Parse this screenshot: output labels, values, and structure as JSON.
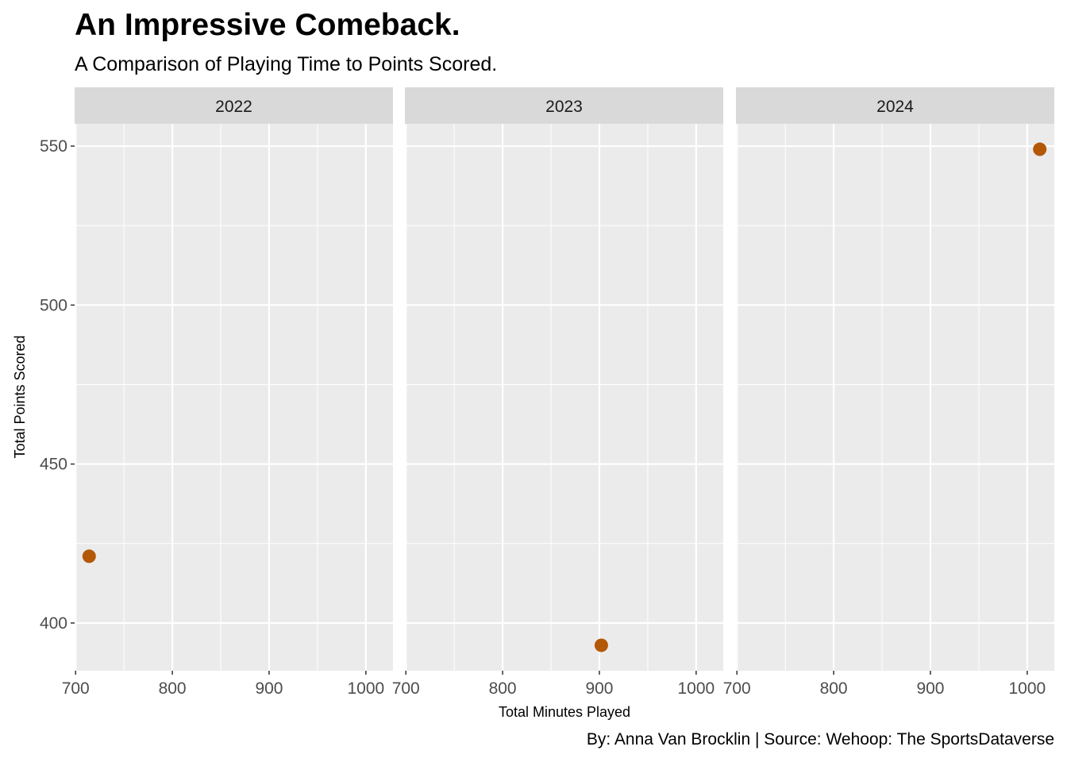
{
  "title": "An Impressive Comeback.",
  "subtitle": "A Comparison of Playing Time to Points Scored.",
  "caption": "By: Anna Van Brocklin | Source: Wehoop: The SportsDataverse",
  "colors": {
    "point": "#B35806",
    "panel_bg": "#EBEBEB",
    "strip_bg": "#D9D9D9",
    "grid": "#FFFFFF",
    "tick": "#333333"
  },
  "chart_data": {
    "type": "scatter",
    "facet_by": "year",
    "xlabel": "Total Minutes Played",
    "ylabel": "Total Points Scored",
    "xlim": [
      699,
      1028
    ],
    "ylim": [
      385,
      557
    ],
    "x_ticks": [
      700,
      800,
      900,
      1000
    ],
    "x_tick_labels": [
      "700",
      "800",
      "900",
      "1000"
    ],
    "y_ticks": [
      400,
      450,
      500,
      550
    ],
    "y_tick_labels": [
      "400",
      "450",
      "500",
      "550"
    ],
    "grid": true,
    "legend": "none",
    "panels": [
      {
        "label": "2022",
        "points": [
          {
            "x": 714,
            "y": 421
          }
        ]
      },
      {
        "label": "2023",
        "points": [
          {
            "x": 902,
            "y": 393
          }
        ]
      },
      {
        "label": "2024",
        "points": [
          {
            "x": 1013,
            "y": 549
          }
        ]
      }
    ]
  }
}
